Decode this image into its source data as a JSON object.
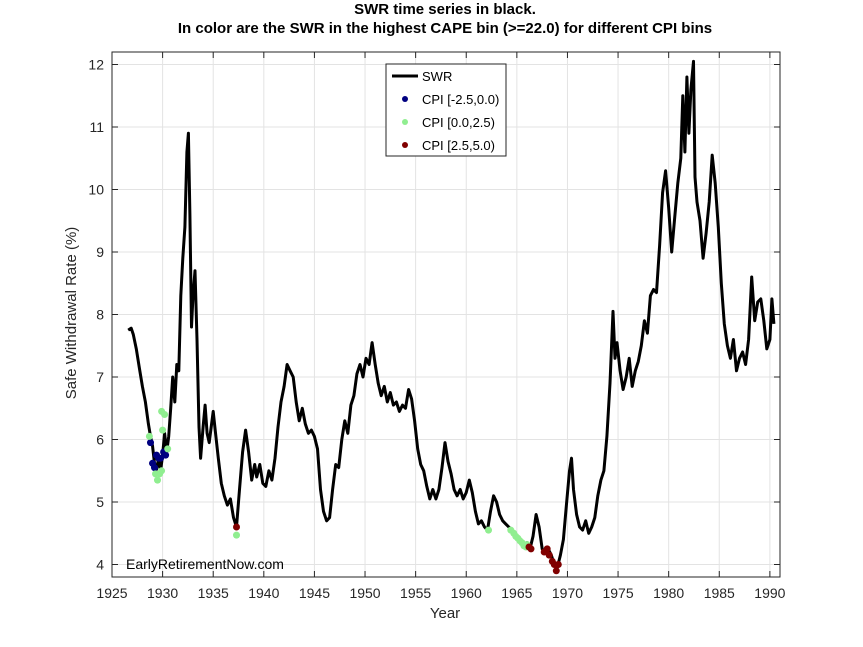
{
  "chart_data": {
    "type": "line",
    "title": "SWR time series in black.",
    "subtitle": "In color are the SWR in the highest CAPE bin (>=22.0) for different CPI bins",
    "xlabel": "Year",
    "ylabel": "Safe Withdrawal Rate (%)",
    "xlim": [
      1925,
      1991
    ],
    "ylim": [
      3.8,
      12.2
    ],
    "xticks": [
      1925,
      1930,
      1935,
      1940,
      1945,
      1950,
      1955,
      1960,
      1965,
      1970,
      1975,
      1980,
      1985,
      1990
    ],
    "yticks": [
      4,
      5,
      6,
      7,
      8,
      9,
      10,
      11,
      12
    ],
    "grid": true,
    "legend_position": "top-center",
    "annotation": "EarlyRetirementNow.com",
    "series": [
      {
        "name": "SWR",
        "color": "#000000",
        "points": [
          [
            1926.6,
            7.75
          ],
          [
            1926.9,
            7.78
          ],
          [
            1927.1,
            7.68
          ],
          [
            1927.4,
            7.45
          ],
          [
            1927.7,
            7.15
          ],
          [
            1928.0,
            6.85
          ],
          [
            1928.3,
            6.6
          ],
          [
            1928.6,
            6.25
          ],
          [
            1928.8,
            6.05
          ],
          [
            1929.0,
            5.9
          ],
          [
            1929.2,
            5.62
          ],
          [
            1929.4,
            5.52
          ],
          [
            1929.6,
            5.7
          ],
          [
            1929.8,
            5.5
          ],
          [
            1930.0,
            5.75
          ],
          [
            1930.2,
            6.1
          ],
          [
            1930.4,
            5.8
          ],
          [
            1930.6,
            6.05
          ],
          [
            1930.8,
            6.5
          ],
          [
            1931.0,
            7.0
          ],
          [
            1931.2,
            6.6
          ],
          [
            1931.4,
            7.2
          ],
          [
            1931.6,
            7.1
          ],
          [
            1931.8,
            8.3
          ],
          [
            1932.0,
            8.9
          ],
          [
            1932.2,
            9.4
          ],
          [
            1932.4,
            10.6
          ],
          [
            1932.55,
            10.9
          ],
          [
            1932.7,
            9.6
          ],
          [
            1932.85,
            7.8
          ],
          [
            1933.0,
            8.3
          ],
          [
            1933.2,
            8.7
          ],
          [
            1933.4,
            7.6
          ],
          [
            1933.6,
            6.2
          ],
          [
            1933.75,
            5.7
          ],
          [
            1934.0,
            6.2
          ],
          [
            1934.2,
            6.55
          ],
          [
            1934.4,
            6.1
          ],
          [
            1934.6,
            5.95
          ],
          [
            1934.8,
            6.2
          ],
          [
            1935.0,
            6.45
          ],
          [
            1935.2,
            6.15
          ],
          [
            1935.5,
            5.7
          ],
          [
            1935.8,
            5.3
          ],
          [
            1936.1,
            5.1
          ],
          [
            1936.4,
            4.95
          ],
          [
            1936.7,
            5.05
          ],
          [
            1937.0,
            4.75
          ],
          [
            1937.3,
            4.6
          ],
          [
            1937.6,
            5.2
          ],
          [
            1937.9,
            5.8
          ],
          [
            1938.2,
            6.15
          ],
          [
            1938.5,
            5.8
          ],
          [
            1938.8,
            5.35
          ],
          [
            1939.1,
            5.6
          ],
          [
            1939.3,
            5.4
          ],
          [
            1939.6,
            5.6
          ],
          [
            1939.9,
            5.3
          ],
          [
            1940.2,
            5.25
          ],
          [
            1940.5,
            5.5
          ],
          [
            1940.8,
            5.35
          ],
          [
            1941.1,
            5.7
          ],
          [
            1941.4,
            6.2
          ],
          [
            1941.7,
            6.6
          ],
          [
            1942.0,
            6.85
          ],
          [
            1942.3,
            7.2
          ],
          [
            1942.6,
            7.1
          ],
          [
            1942.9,
            7.0
          ],
          [
            1943.2,
            6.6
          ],
          [
            1943.5,
            6.3
          ],
          [
            1943.8,
            6.5
          ],
          [
            1944.1,
            6.25
          ],
          [
            1944.4,
            6.1
          ],
          [
            1944.7,
            6.15
          ],
          [
            1945.0,
            6.05
          ],
          [
            1945.3,
            5.85
          ],
          [
            1945.6,
            5.2
          ],
          [
            1945.9,
            4.85
          ],
          [
            1946.2,
            4.7
          ],
          [
            1946.5,
            4.75
          ],
          [
            1946.8,
            5.2
          ],
          [
            1947.1,
            5.6
          ],
          [
            1947.4,
            5.55
          ],
          [
            1947.7,
            6.0
          ],
          [
            1948.0,
            6.3
          ],
          [
            1948.3,
            6.1
          ],
          [
            1948.6,
            6.55
          ],
          [
            1948.9,
            6.7
          ],
          [
            1949.2,
            7.05
          ],
          [
            1949.5,
            7.2
          ],
          [
            1949.8,
            7.0
          ],
          [
            1950.1,
            7.3
          ],
          [
            1950.4,
            7.2
          ],
          [
            1950.7,
            7.55
          ],
          [
            1951.0,
            7.2
          ],
          [
            1951.3,
            6.9
          ],
          [
            1951.6,
            6.7
          ],
          [
            1951.9,
            6.85
          ],
          [
            1952.2,
            6.6
          ],
          [
            1952.5,
            6.75
          ],
          [
            1952.8,
            6.55
          ],
          [
            1953.1,
            6.6
          ],
          [
            1953.4,
            6.45
          ],
          [
            1953.7,
            6.55
          ],
          [
            1954.0,
            6.5
          ],
          [
            1954.3,
            6.8
          ],
          [
            1954.6,
            6.65
          ],
          [
            1954.9,
            6.3
          ],
          [
            1955.2,
            5.85
          ],
          [
            1955.5,
            5.6
          ],
          [
            1955.8,
            5.5
          ],
          [
            1956.1,
            5.25
          ],
          [
            1956.4,
            5.05
          ],
          [
            1956.7,
            5.2
          ],
          [
            1957.0,
            5.05
          ],
          [
            1957.3,
            5.2
          ],
          [
            1957.6,
            5.55
          ],
          [
            1957.9,
            5.95
          ],
          [
            1958.2,
            5.65
          ],
          [
            1958.5,
            5.45
          ],
          [
            1958.8,
            5.2
          ],
          [
            1959.1,
            5.1
          ],
          [
            1959.4,
            5.2
          ],
          [
            1959.7,
            5.05
          ],
          [
            1960.0,
            5.15
          ],
          [
            1960.3,
            5.35
          ],
          [
            1960.6,
            5.15
          ],
          [
            1960.9,
            4.85
          ],
          [
            1961.2,
            4.65
          ],
          [
            1961.5,
            4.7
          ],
          [
            1961.8,
            4.6
          ],
          [
            1962.1,
            4.55
          ],
          [
            1962.4,
            4.85
          ],
          [
            1962.7,
            5.1
          ],
          [
            1963.0,
            5.0
          ],
          [
            1963.3,
            4.8
          ],
          [
            1963.6,
            4.7
          ],
          [
            1963.9,
            4.65
          ],
          [
            1964.2,
            4.6
          ],
          [
            1964.5,
            4.55
          ],
          [
            1964.8,
            4.5
          ],
          [
            1965.1,
            4.45
          ],
          [
            1965.4,
            4.4
          ],
          [
            1965.7,
            4.3
          ],
          [
            1966.0,
            4.35
          ],
          [
            1966.3,
            4.25
          ],
          [
            1966.6,
            4.45
          ],
          [
            1966.9,
            4.8
          ],
          [
            1967.2,
            4.6
          ],
          [
            1967.5,
            4.25
          ],
          [
            1967.8,
            4.2
          ],
          [
            1968.1,
            4.25
          ],
          [
            1968.4,
            4.15
          ],
          [
            1968.7,
            4.0
          ],
          [
            1969.0,
            3.95
          ],
          [
            1969.3,
            4.15
          ],
          [
            1969.6,
            4.4
          ],
          [
            1969.9,
            4.95
          ],
          [
            1970.2,
            5.5
          ],
          [
            1970.4,
            5.7
          ],
          [
            1970.6,
            5.2
          ],
          [
            1970.9,
            4.8
          ],
          [
            1971.2,
            4.6
          ],
          [
            1971.5,
            4.55
          ],
          [
            1971.8,
            4.7
          ],
          [
            1972.1,
            4.5
          ],
          [
            1972.4,
            4.6
          ],
          [
            1972.7,
            4.75
          ],
          [
            1973.0,
            5.1
          ],
          [
            1973.3,
            5.35
          ],
          [
            1973.6,
            5.5
          ],
          [
            1973.9,
            6.05
          ],
          [
            1974.2,
            6.9
          ],
          [
            1974.5,
            8.05
          ],
          [
            1974.7,
            7.3
          ],
          [
            1974.9,
            7.55
          ],
          [
            1975.2,
            7.1
          ],
          [
            1975.5,
            6.8
          ],
          [
            1975.8,
            7.0
          ],
          [
            1976.1,
            7.3
          ],
          [
            1976.4,
            6.85
          ],
          [
            1976.7,
            7.1
          ],
          [
            1977.0,
            7.25
          ],
          [
            1977.3,
            7.5
          ],
          [
            1977.6,
            7.9
          ],
          [
            1977.9,
            7.7
          ],
          [
            1978.2,
            8.3
          ],
          [
            1978.5,
            8.4
          ],
          [
            1978.8,
            8.35
          ],
          [
            1979.1,
            9.1
          ],
          [
            1979.4,
            9.95
          ],
          [
            1979.7,
            10.3
          ],
          [
            1980.0,
            9.7
          ],
          [
            1980.3,
            9.0
          ],
          [
            1980.6,
            9.55
          ],
          [
            1980.9,
            10.1
          ],
          [
            1981.2,
            10.5
          ],
          [
            1981.4,
            11.5
          ],
          [
            1981.6,
            10.6
          ],
          [
            1981.8,
            11.8
          ],
          [
            1982.0,
            10.9
          ],
          [
            1982.2,
            11.6
          ],
          [
            1982.45,
            12.05
          ],
          [
            1982.6,
            10.2
          ],
          [
            1982.8,
            9.8
          ],
          [
            1983.1,
            9.5
          ],
          [
            1983.4,
            8.9
          ],
          [
            1983.7,
            9.3
          ],
          [
            1984.0,
            9.8
          ],
          [
            1984.3,
            10.55
          ],
          [
            1984.6,
            10.1
          ],
          [
            1984.9,
            9.4
          ],
          [
            1985.2,
            8.5
          ],
          [
            1985.5,
            7.85
          ],
          [
            1985.8,
            7.5
          ],
          [
            1986.1,
            7.3
          ],
          [
            1986.4,
            7.6
          ],
          [
            1986.7,
            7.1
          ],
          [
            1987.0,
            7.3
          ],
          [
            1987.3,
            7.4
          ],
          [
            1987.6,
            7.2
          ],
          [
            1987.9,
            7.6
          ],
          [
            1988.2,
            8.6
          ],
          [
            1988.5,
            7.9
          ],
          [
            1988.8,
            8.2
          ],
          [
            1989.1,
            8.25
          ],
          [
            1989.4,
            7.9
          ],
          [
            1989.7,
            7.45
          ],
          [
            1990.0,
            7.6
          ],
          [
            1990.2,
            8.25
          ],
          [
            1990.4,
            7.85
          ]
        ]
      },
      {
        "name": "CPI [-2.5,0.0)",
        "color": "#000080",
        "points": [
          [
            1928.8,
            5.95
          ],
          [
            1929.0,
            5.62
          ],
          [
            1929.2,
            5.55
          ],
          [
            1929.4,
            5.75
          ],
          [
            1929.6,
            5.7
          ],
          [
            1929.8,
            5.7
          ],
          [
            1930.1,
            5.8
          ],
          [
            1930.3,
            5.75
          ]
        ]
      },
      {
        "name": "CPI [0.0,2.5)",
        "color": "#90ee90",
        "points": [
          [
            1928.7,
            6.05
          ],
          [
            1929.3,
            5.45
          ],
          [
            1929.5,
            5.35
          ],
          [
            1929.7,
            5.45
          ],
          [
            1929.9,
            5.5
          ],
          [
            1930.0,
            6.15
          ],
          [
            1929.9,
            6.45
          ],
          [
            1930.2,
            6.4
          ],
          [
            1930.5,
            5.85
          ],
          [
            1937.3,
            4.47
          ],
          [
            1962.2,
            4.55
          ],
          [
            1964.4,
            4.55
          ],
          [
            1964.7,
            4.5
          ],
          [
            1964.9,
            4.45
          ],
          [
            1965.1,
            4.42
          ],
          [
            1965.3,
            4.38
          ],
          [
            1965.5,
            4.35
          ],
          [
            1965.7,
            4.3
          ],
          [
            1965.9,
            4.28
          ],
          [
            1966.0,
            4.32
          ]
        ]
      },
      {
        "name": "CPI [2.5,5.0)",
        "color": "#800000",
        "points": [
          [
            1937.3,
            4.6
          ],
          [
            1966.2,
            4.28
          ],
          [
            1966.4,
            4.25
          ],
          [
            1967.7,
            4.2
          ],
          [
            1968.0,
            4.25
          ],
          [
            1968.2,
            4.15
          ],
          [
            1968.5,
            4.05
          ],
          [
            1968.7,
            4.0
          ],
          [
            1968.9,
            3.9
          ],
          [
            1969.1,
            4.0
          ]
        ]
      }
    ]
  }
}
